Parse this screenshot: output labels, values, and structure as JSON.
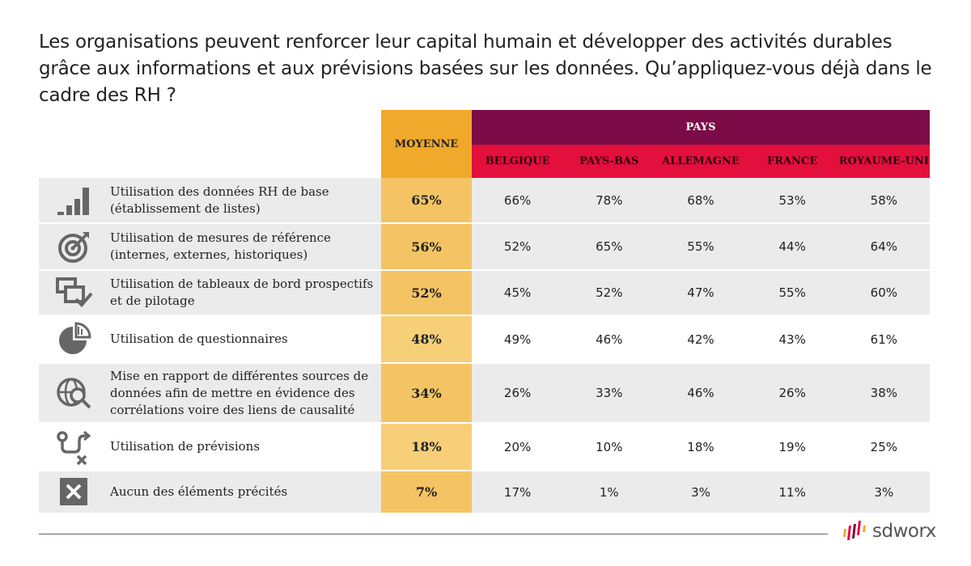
{
  "title": "Les organisations peuvent renforcer leur capital humain et développer des activités durables grâce aux informations et aux prévisions basées sur les données. Qu’appliquez-vous déjà dans le cadre des RH ?",
  "brand": "sdworx",
  "colors": {
    "average_header": "#f1a92b",
    "average_cells": "#f6cf78",
    "pays_header": "#7c0c47",
    "country_header": "#e30f3c",
    "row_shade": "#ebebeb"
  },
  "chart_data": {
    "type": "table",
    "title": "Les organisations peuvent renforcer leur capital humain et développer des activités durables grâce aux informations et aux prévisions basées sur les données. Qu’appliquez-vous déjà dans le cadre des RH ?",
    "average_label": "MOYENNE",
    "group_label": "PAYS",
    "countries": [
      "BELGIQUE",
      "PAYS-BAS",
      "ALLEMAGNE",
      "FRANCE",
      "ROYAUME-UNI"
    ],
    "rows": [
      {
        "icon": "bar-chart-icon",
        "label": "Utilisation des données RH de base (établissement de listes)",
        "average": "65%",
        "values": [
          "66%",
          "78%",
          "68%",
          "53%",
          "58%"
        ]
      },
      {
        "icon": "target-icon",
        "label": "Utilisation de mesures de référence (internes, externes, historiques)",
        "average": "56%",
        "values": [
          "52%",
          "65%",
          "55%",
          "44%",
          "64%"
        ]
      },
      {
        "icon": "dashboard-check-icon",
        "label": "Utilisation de tableaux de bord prospectifs et de pilotage",
        "average": "52%",
        "values": [
          "45%",
          "52%",
          "47%",
          "55%",
          "60%"
        ]
      },
      {
        "icon": "pie-chart-icon",
        "label": "Utilisation de questionnaires",
        "average": "48%",
        "values": [
          "49%",
          "46%",
          "42%",
          "43%",
          "61%"
        ]
      },
      {
        "icon": "globe-search-icon",
        "label": "Mise en rapport de différentes sources de données afin de mettre en évidence des corrélations voire des liens de causalité",
        "average": "34%",
        "values": [
          "26%",
          "33%",
          "46%",
          "26%",
          "38%"
        ]
      },
      {
        "icon": "forecast-path-icon",
        "label": "Utilisation de prévisions",
        "average": "18%",
        "values": [
          "20%",
          "10%",
          "18%",
          "19%",
          "25%"
        ]
      },
      {
        "icon": "cross-box-icon",
        "label": "Aucun des éléments précités",
        "average": "7%",
        "values": [
          "17%",
          "1%",
          "3%",
          "11%",
          "3%"
        ]
      }
    ]
  }
}
